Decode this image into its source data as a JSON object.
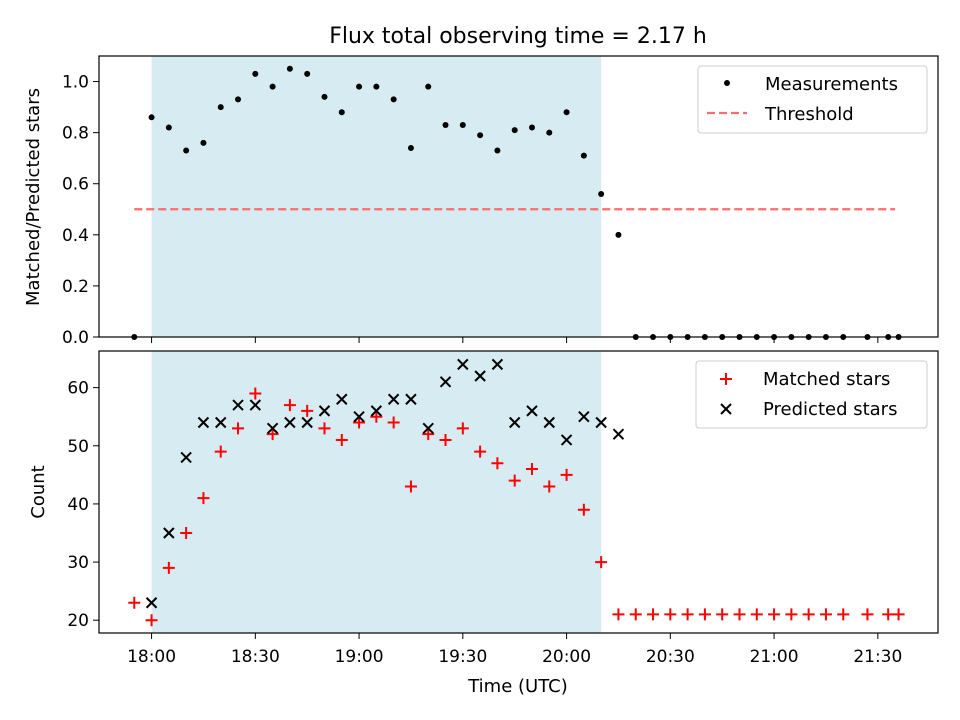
{
  "chart_data": {
    "type": "scatter",
    "title": "Flux total observing time = 2.17 h",
    "xlabel": "Time (UTC)",
    "x_ticks": [
      "18:00",
      "18:30",
      "19:00",
      "19:30",
      "20:00",
      "20:30",
      "21:00",
      "21:30"
    ],
    "x_tick_minutes": [
      1080,
      1110,
      1140,
      1170,
      1200,
      1230,
      1260,
      1290
    ],
    "xlim": [
      1064.8,
      1307.4
    ],
    "shaded_interval": [
      1080,
      1210
    ],
    "shade_color": "#add8e6",
    "panels": [
      {
        "ylabel": "Matched/Predicted stars",
        "ylim": [
          0,
          1.1
        ],
        "y_ticks": [
          "0.0",
          "0.2",
          "0.4",
          "0.6",
          "0.8",
          "1.0"
        ],
        "y_tick_values": [
          0,
          0.2,
          0.4,
          0.6,
          0.8,
          1.0
        ],
        "legend_position": "top-right",
        "series": [
          {
            "name": "Measurements",
            "marker": "dot",
            "color": "#000000",
            "x": [
              1075,
              1080,
              1085,
              1090,
              1095,
              1100,
              1105,
              1110,
              1115,
              1120,
              1125,
              1130,
              1135,
              1140,
              1145,
              1150,
              1155,
              1160,
              1165,
              1170,
              1175,
              1180,
              1185,
              1190,
              1195,
              1200,
              1205,
              1210,
              1215,
              1220,
              1225,
              1230,
              1235,
              1240,
              1245,
              1250,
              1255,
              1260,
              1265,
              1270,
              1275,
              1280,
              1287,
              1293,
              1296
            ],
            "y": [
              0.0,
              0.86,
              0.82,
              0.73,
              0.76,
              0.9,
              0.93,
              1.03,
              0.98,
              1.05,
              1.03,
              0.94,
              0.88,
              0.98,
              0.98,
              0.93,
              0.74,
              0.98,
              0.83,
              0.83,
              0.79,
              0.73,
              0.81,
              0.82,
              0.8,
              0.88,
              0.71,
              0.56,
              0.4,
              0.0,
              0.0,
              0.0,
              0.0,
              0.0,
              0.0,
              0.0,
              0.0,
              0.0,
              0.0,
              0.0,
              0.0,
              0.0,
              0.0,
              0.0,
              0.0
            ]
          },
          {
            "name": "Threshold",
            "marker": "dashed-line",
            "color": "#ff6b6b",
            "x": [
              1075,
              1295
            ],
            "y": [
              0.5,
              0.5
            ]
          }
        ]
      },
      {
        "ylabel": "Count",
        "ylim": [
          17.8,
          66.3
        ],
        "y_ticks": [
          "20",
          "30",
          "40",
          "50",
          "60"
        ],
        "y_tick_values": [
          20,
          30,
          40,
          50,
          60
        ],
        "legend_position": "top-right",
        "series": [
          {
            "name": "Matched stars",
            "marker": "plus",
            "color": "#ff0000",
            "x": [
              1075,
              1080,
              1085,
              1090,
              1095,
              1100,
              1105,
              1110,
              1115,
              1120,
              1125,
              1130,
              1135,
              1140,
              1145,
              1150,
              1155,
              1160,
              1165,
              1170,
              1175,
              1180,
              1185,
              1190,
              1195,
              1200,
              1205,
              1210,
              1215,
              1220,
              1225,
              1230,
              1235,
              1240,
              1245,
              1250,
              1255,
              1260,
              1265,
              1270,
              1275,
              1280,
              1287,
              1293,
              1296
            ],
            "y": [
              23,
              20,
              29,
              35,
              41,
              49,
              53,
              59,
              52,
              57,
              56,
              53,
              51,
              54,
              55,
              54,
              43,
              52,
              51,
              53,
              49,
              47,
              44,
              46,
              43,
              45,
              39,
              30,
              21,
              21,
              21,
              21,
              21,
              21,
              21,
              21,
              21,
              21,
              21,
              21,
              21,
              21,
              21,
              21,
              21
            ]
          },
          {
            "name": "Predicted stars",
            "marker": "x",
            "color": "#000000",
            "x": [
              1080,
              1085,
              1090,
              1095,
              1100,
              1105,
              1110,
              1115,
              1120,
              1125,
              1130,
              1135,
              1140,
              1145,
              1150,
              1155,
              1160,
              1165,
              1170,
              1175,
              1180,
              1185,
              1190,
              1195,
              1200,
              1205,
              1210,
              1215
            ],
            "y": [
              23,
              35,
              48,
              54,
              54,
              57,
              57,
              53,
              54,
              54,
              56,
              58,
              55,
              56,
              58,
              58,
              53,
              61,
              64,
              62,
              64,
              54,
              56,
              54,
              51,
              55,
              54,
              52
            ]
          }
        ]
      }
    ]
  }
}
